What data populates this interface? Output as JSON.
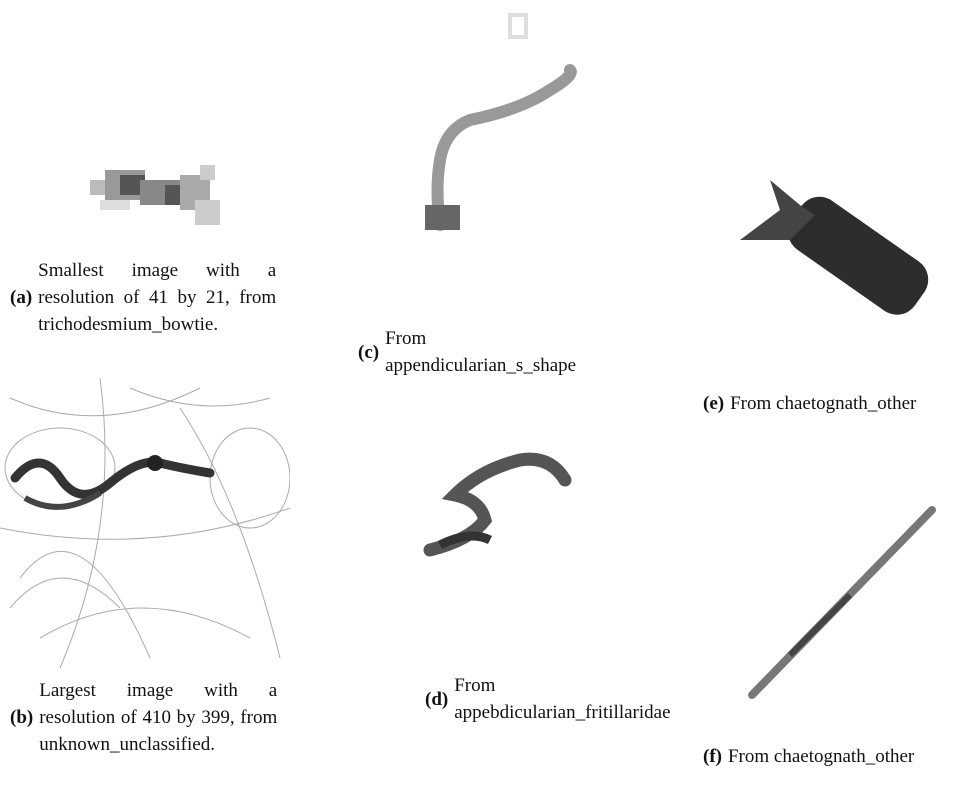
{
  "subfigures": [
    {
      "label": "(a)",
      "caption": "Smallest image with a resolution of 41 by 21, from trichodesmium_bowtie."
    },
    {
      "label": "(b)",
      "caption": "Largest image with a resolution of 410 by 399, from unknown_unclassified."
    },
    {
      "label": "(c)",
      "caption": "From appendicularian_s_shape"
    },
    {
      "label": "(d)",
      "caption": "From appebdicularian_fritillaridae"
    },
    {
      "label": "(e)",
      "caption": "From chaetognath_other"
    },
    {
      "label": "(f)",
      "caption": "From chaetognath_other"
    }
  ]
}
